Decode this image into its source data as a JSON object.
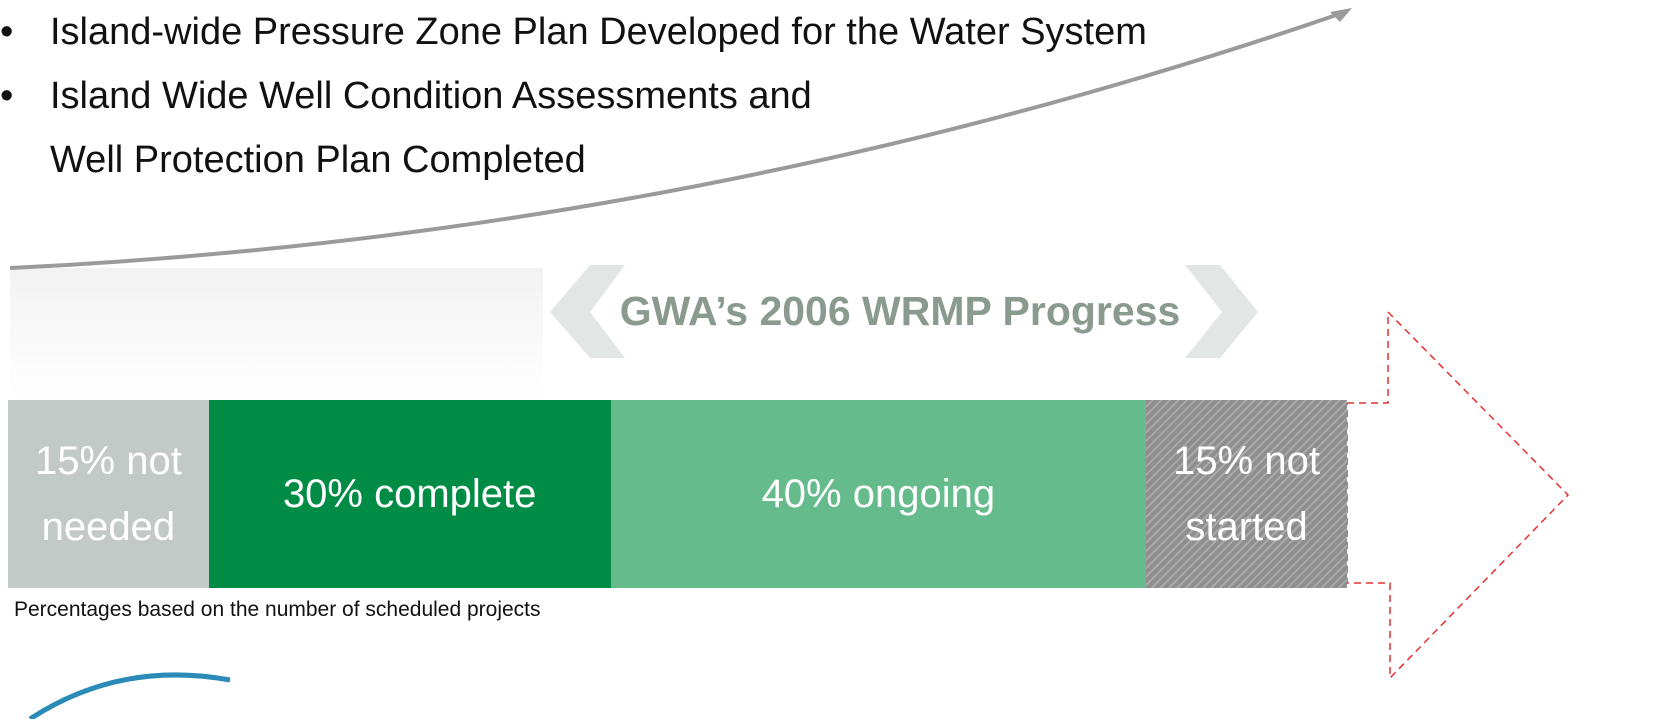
{
  "bullets": [
    "Island-wide Pressure Zone Plan Developed for the Water System",
    "Island Wide Well Condition Assessments and\nWell Protection Plan Completed"
  ],
  "chart_data": {
    "type": "bar",
    "orientation": "horizontal",
    "stacked": true,
    "title": "GWA’s 2006 WRMP Progress",
    "xlim": [
      0,
      100
    ],
    "series": [
      {
        "color": "#c3c9c6",
        "values": [
          15
        ],
        "value_labels": [
          "15% not\nneeded"
        ]
      },
      {
        "color": "#008c44",
        "values": [
          30
        ],
        "value_labels": [
          "30% complete"
        ]
      },
      {
        "color": "#66bb8c",
        "values": [
          40
        ],
        "value_labels": [
          "40% ongoing"
        ]
      },
      {
        "color": "#8e8e8e",
        "hatch": true,
        "values": [
          15
        ],
        "value_labels": [
          "15% not\nstarted"
        ]
      }
    ],
    "note": "Percentages based on the number of scheduled projects"
  }
}
